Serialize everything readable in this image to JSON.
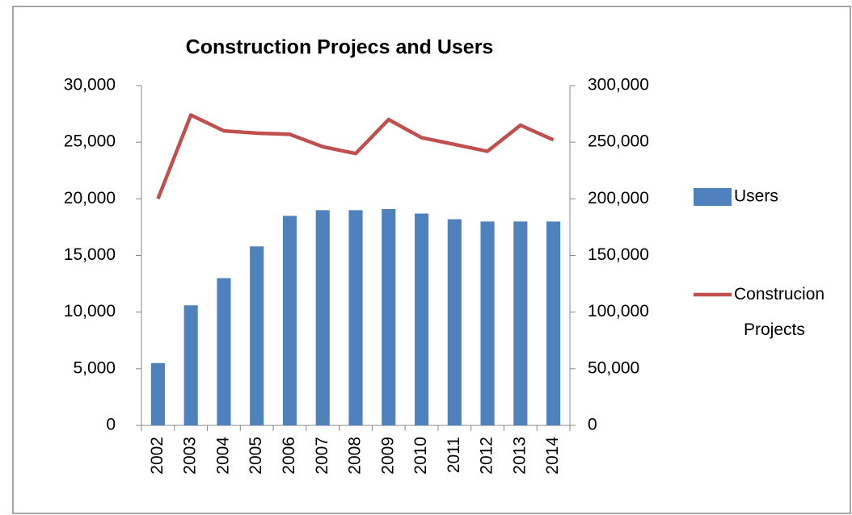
{
  "chart_data": {
    "type": "bar_line",
    "title": "Construction Projecs and Users",
    "categories": [
      "2002",
      "2003",
      "2004",
      "2005",
      "2006",
      "2007",
      "2008",
      "2009",
      "2010",
      "2011",
      "2012",
      "2013",
      "2014"
    ],
    "series": [
      {
        "name": "Users",
        "type": "bar",
        "color": "#4f81bd",
        "values": [
          5500,
          10600,
          13000,
          15800,
          18500,
          19000,
          19000,
          19100,
          18700,
          18200,
          18000,
          18000,
          18000
        ]
      },
      {
        "name": "Construcion Projects",
        "type": "line",
        "axis": "y2",
        "color": "#c0504d",
        "values": [
          200000,
          274000,
          260000,
          258000,
          257000,
          246000,
          240000,
          270000,
          254000,
          248000,
          242000,
          265000,
          252000
        ]
      }
    ],
    "ylim": [
      0,
      30000
    ],
    "yticks": [
      0,
      {
        "value": 5000,
        "label": "5,000"
      },
      {
        "value": 10000,
        "label": "10,000"
      },
      {
        "value": 15000,
        "label": "15,000"
      },
      {
        "value": 20000,
        "label": "20,000"
      },
      {
        "value": 25000,
        "label": "25,000"
      },
      {
        "value": 30000,
        "label": "30,000"
      }
    ],
    "y2lim": [
      0,
      300000
    ],
    "y2ticks": [
      0,
      {
        "value": 50000,
        "label": "50,000"
      },
      {
        "value": 100000,
        "label": "100,000"
      },
      {
        "value": 150000,
        "label": "150,000"
      },
      {
        "value": 200000,
        "label": "200,000"
      },
      {
        "value": 250000,
        "label": "250,000"
      },
      {
        "value": 300000,
        "label": "300,000"
      }
    ],
    "grid": false,
    "legend": "right"
  }
}
